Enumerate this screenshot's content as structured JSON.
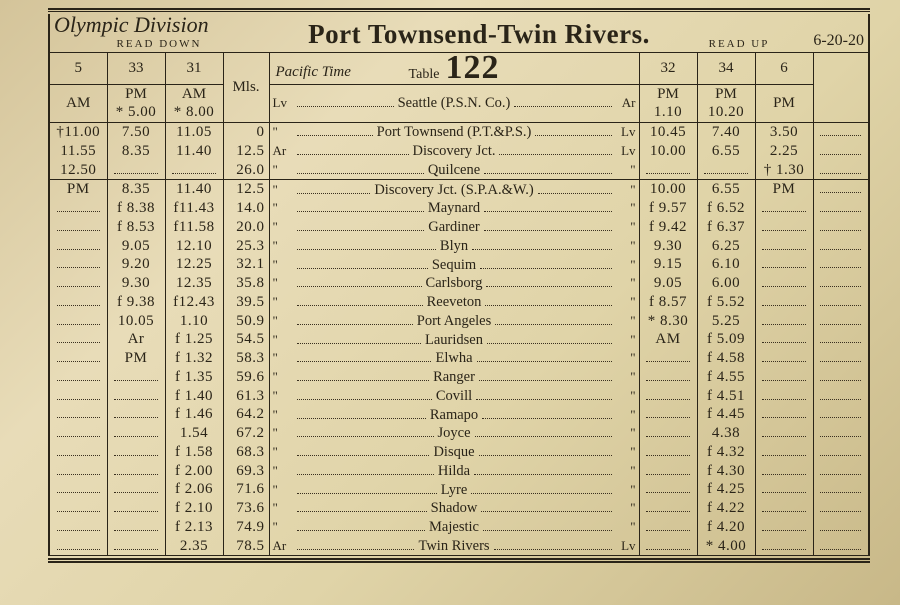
{
  "header": {
    "division": "Olympic Division",
    "read_down": "READ DOWN",
    "route": "Port Townsend-Twin Rivers.",
    "read_up": "READ UP",
    "date": "6-20-20"
  },
  "table_label": {
    "word": "Table",
    "number": "122",
    "pacific": "Pacific Time"
  },
  "col_headers": {
    "left_nums": [
      "5",
      "33",
      "31"
    ],
    "miles": "Mls.",
    "right_nums": [
      "32",
      "34",
      "6"
    ],
    "left_ampm": [
      "AM",
      "PM",
      "AM"
    ],
    "left_extra": [
      "",
      "* 5.00",
      "* 8.00"
    ],
    "right_ampm": [
      "PM",
      "PM",
      "PM"
    ],
    "right_extra": [
      "1.10",
      "10.20",
      ""
    ]
  },
  "seattle_row": {
    "station": "Seattle (P.S.N. Co.)",
    "left_mark": "Lv",
    "right_mark": "Ar"
  },
  "section1": [
    {
      "l": [
        "†11.00",
        "7.50",
        "11.05"
      ],
      "m": "0",
      "lm": "\"",
      "name": "Port Townsend (P.T.&P.S.)",
      "rm": "Lv",
      "r": [
        "10.45",
        "7.40",
        "3.50"
      ]
    },
    {
      "l": [
        "11.55",
        "8.35",
        "11.40"
      ],
      "m": "12.5",
      "lm": "Ar",
      "name": "Discovery Jct.",
      "rm": "Lv",
      "r": [
        "10.00",
        "6.55",
        "2.25"
      ]
    },
    {
      "l": [
        "12.50",
        "",
        ""
      ],
      "m": "26.0",
      "lm": "\"",
      "name": "Quilcene",
      "rm": "\"",
      "r": [
        "",
        "",
        "† 1.30"
      ]
    }
  ],
  "section2_head": {
    "l": [
      "PM",
      "8.35",
      "11.40"
    ],
    "m": "12.5",
    "lm": "\"",
    "name": "Discovery Jct. (S.P.A.&W.)",
    "rm": "\"",
    "r": [
      "10.00",
      "6.55",
      "PM"
    ]
  },
  "section2": [
    {
      "l": [
        "",
        "f 8.38",
        "f11.43"
      ],
      "m": "14.0",
      "name": "Maynard",
      "r": [
        "f 9.57",
        "f 6.52",
        ""
      ]
    },
    {
      "l": [
        "",
        "f 8.53",
        "f11.58"
      ],
      "m": "20.0",
      "name": "Gardiner",
      "r": [
        "f 9.42",
        "f 6.37",
        ""
      ]
    },
    {
      "l": [
        "",
        "9.05",
        "12.10"
      ],
      "m": "25.3",
      "name": "Blyn",
      "r": [
        "9.30",
        "6.25",
        ""
      ]
    },
    {
      "l": [
        "",
        "9.20",
        "12.25"
      ],
      "m": "32.1",
      "name": "Sequim",
      "r": [
        "9.15",
        "6.10",
        ""
      ]
    },
    {
      "l": [
        "",
        "9.30",
        "12.35"
      ],
      "m": "35.8",
      "name": "Carlsborg",
      "r": [
        "9.05",
        "6.00",
        ""
      ]
    },
    {
      "l": [
        "",
        "f 9.38",
        "f12.43"
      ],
      "m": "39.5",
      "name": "Reeveton",
      "r": [
        "f 8.57",
        "f 5.52",
        ""
      ]
    },
    {
      "l": [
        "",
        "10.05",
        "1.10"
      ],
      "m": "50.9",
      "name": "Port Angeles",
      "r": [
        "* 8.30",
        "5.25",
        ""
      ]
    },
    {
      "l": [
        "",
        "Ar",
        "f 1.25"
      ],
      "m": "54.5",
      "name": "Lauridsen",
      "r": [
        "AM",
        "f 5.09",
        ""
      ]
    },
    {
      "l": [
        "",
        "PM",
        "f 1.32"
      ],
      "m": "58.3",
      "name": "Elwha",
      "r": [
        "",
        "f 4.58",
        ""
      ]
    },
    {
      "l": [
        "",
        "",
        "f 1.35"
      ],
      "m": "59.6",
      "name": "Ranger",
      "r": [
        "",
        "f 4.55",
        ""
      ]
    },
    {
      "l": [
        "",
        "",
        "f 1.40"
      ],
      "m": "61.3",
      "name": "Covill",
      "r": [
        "",
        "f 4.51",
        ""
      ]
    },
    {
      "l": [
        "",
        "",
        "f 1.46"
      ],
      "m": "64.2",
      "name": "Ramapo",
      "r": [
        "",
        "f 4.45",
        ""
      ]
    },
    {
      "l": [
        "",
        "",
        "1.54"
      ],
      "m": "67.2",
      "name": "Joyce",
      "r": [
        "",
        "4.38",
        ""
      ]
    },
    {
      "l": [
        "",
        "",
        "f 1.58"
      ],
      "m": "68.3",
      "name": "Disque",
      "r": [
        "",
        "f 4.32",
        ""
      ]
    },
    {
      "l": [
        "",
        "",
        "f 2.00"
      ],
      "m": "69.3",
      "name": "Hilda",
      "r": [
        "",
        "f 4.30",
        ""
      ]
    },
    {
      "l": [
        "",
        "",
        "f 2.06"
      ],
      "m": "71.6",
      "name": "Lyre",
      "r": [
        "",
        "f 4.25",
        ""
      ]
    },
    {
      "l": [
        "",
        "",
        "f 2.10"
      ],
      "m": "73.6",
      "name": "Shadow",
      "r": [
        "",
        "f 4.22",
        ""
      ]
    },
    {
      "l": [
        "",
        "",
        "f 2.13"
      ],
      "m": "74.9",
      "name": "Majestic",
      "r": [
        "",
        "f 4.20",
        ""
      ]
    },
    {
      "l": [
        "",
        "",
        "2.35"
      ],
      "m": "78.5",
      "lm": "Ar",
      "name": "Twin Rivers",
      "rm": "Lv",
      "r": [
        "",
        "* 4.00",
        ""
      ]
    }
  ],
  "colors": {
    "ink": "#2a2418",
    "paper_light": "#e8dcb8",
    "paper_dark": "#c8b888"
  }
}
